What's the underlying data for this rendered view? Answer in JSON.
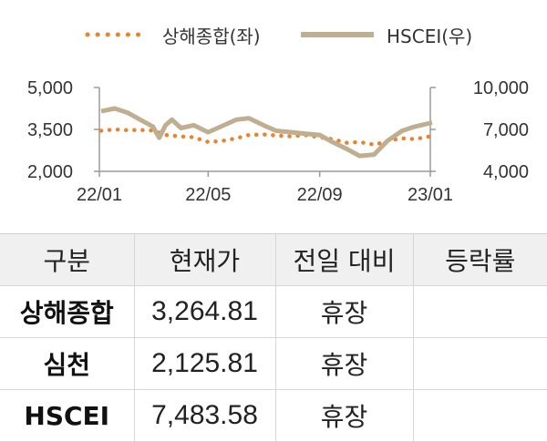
{
  "legend": {
    "left_label": "상해종합(좌)",
    "right_label": "HSCEI(우)"
  },
  "colors": {
    "shanghai": "#e8832e",
    "hscei": "#bfae90",
    "axis": "#9a9a9a",
    "header_bg": "#f0f0f0"
  },
  "chart_data": {
    "type": "line",
    "x_ticks": [
      "22/01",
      "22/05",
      "22/09",
      "23/01"
    ],
    "y_left": {
      "range": [
        2000,
        5000
      ],
      "ticks": [
        "2,000",
        "3,500",
        "5,000"
      ]
    },
    "y_right": {
      "range": [
        4000,
        10000
      ],
      "ticks": [
        "4,000",
        "7,000",
        "10,000"
      ]
    },
    "series": [
      {
        "name": "상해종합(좌)",
        "axis": "left",
        "style": "dotted",
        "x": [
          "2022-01-03",
          "2022-01-18",
          "2022-02-01",
          "2022-02-15",
          "2022-03-01",
          "2022-03-15",
          "2022-04-01",
          "2022-04-15",
          "2022-05-01",
          "2022-05-15",
          "2022-06-01",
          "2022-06-15",
          "2022-07-01",
          "2022-07-15",
          "2022-08-01",
          "2022-08-15",
          "2022-09-01",
          "2022-09-15",
          "2022-10-01",
          "2022-10-15",
          "2022-11-01",
          "2022-11-15",
          "2022-12-01",
          "2022-12-15",
          "2023-01-03"
        ],
        "values": [
          3450,
          3500,
          3470,
          3480,
          3460,
          3300,
          3250,
          3220,
          3050,
          3080,
          3180,
          3300,
          3320,
          3280,
          3250,
          3300,
          3220,
          3150,
          3020,
          3050,
          2950,
          3100,
          3180,
          3150,
          3265
        ]
      },
      {
        "name": "HSCEI(우)",
        "axis": "right",
        "style": "solid",
        "x": [
          "2022-01-03",
          "2022-01-18",
          "2022-02-01",
          "2022-02-15",
          "2022-03-01",
          "2022-03-08",
          "2022-03-15",
          "2022-03-22",
          "2022-04-01",
          "2022-04-15",
          "2022-05-01",
          "2022-05-15",
          "2022-06-01",
          "2022-06-15",
          "2022-07-01",
          "2022-07-15",
          "2022-08-01",
          "2022-08-15",
          "2022-09-01",
          "2022-09-15",
          "2022-10-01",
          "2022-10-15",
          "2022-10-31",
          "2022-11-15",
          "2022-12-01",
          "2022-12-15",
          "2023-01-03"
        ],
        "values": [
          8300,
          8500,
          8200,
          7700,
          7200,
          6400,
          7300,
          7700,
          7100,
          7300,
          6800,
          7200,
          7700,
          7800,
          7300,
          6900,
          6800,
          6700,
          6600,
          6100,
          5600,
          5100,
          5200,
          6200,
          6900,
          7200,
          7480
        ]
      }
    ]
  },
  "table": {
    "headers": [
      "구분",
      "현재가",
      "전일 대비",
      "등락률"
    ],
    "rows": [
      {
        "name": "상해종합",
        "price": "3,264.81",
        "change": "휴장",
        "rate": ""
      },
      {
        "name": "심천",
        "price": "2,125.81",
        "change": "휴장",
        "rate": ""
      },
      {
        "name": "HSCEI",
        "price": "7,483.58",
        "change": "휴장",
        "rate": ""
      }
    ]
  }
}
